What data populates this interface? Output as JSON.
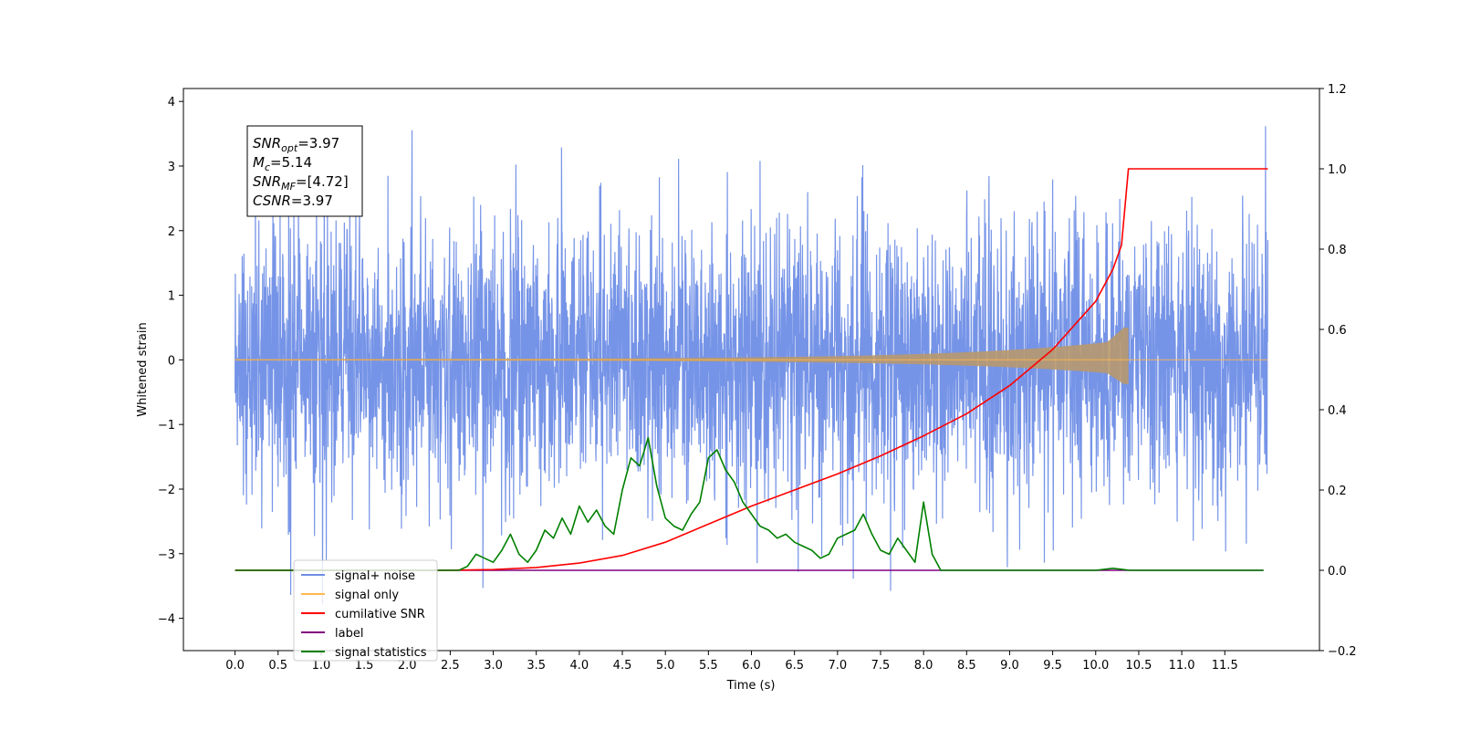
{
  "chart_data": {
    "type": "line",
    "xlabel": "Time (s)",
    "ylabel": "Whitened strain",
    "xlim": [
      -0.6,
      12.6
    ],
    "ylim": [
      -4.5,
      4.2
    ],
    "y2lim": [
      -0.2,
      1.2
    ],
    "x_ticks": [
      "0.0",
      "0.5",
      "1.0",
      "1.5",
      "2.0",
      "2.5",
      "3.0",
      "3.5",
      "4.0",
      "4.5",
      "5.0",
      "5.5",
      "6.0",
      "6.5",
      "7.0",
      "7.5",
      "8.0",
      "8.5",
      "9.0",
      "9.5",
      "10.0",
      "10.5",
      "11.0",
      "11.5"
    ],
    "y_ticks": [
      "4",
      "3",
      "2",
      "1",
      "0",
      "−1",
      "−2",
      "−3",
      "−4"
    ],
    "y2_ticks": [
      "1.2",
      "1.0",
      "0.8",
      "0.6",
      "0.4",
      "0.2",
      "0.0",
      "−0.2"
    ],
    "grid": false,
    "legend_position": "lower-left",
    "annotation": {
      "lines": [
        {
          "sym": "SNR",
          "sub": "opt",
          "value": "=3.97"
        },
        {
          "sym": "M",
          "sub": "c",
          "value": "=5.14"
        },
        {
          "sym": "SNR",
          "sub": "MF",
          "value": "=[4.72]"
        },
        {
          "sym": "CSNR",
          "sub": "",
          "value": "=3.97"
        }
      ]
    },
    "series": [
      {
        "name": "signal+ noise",
        "color": "#6f8ee6",
        "axis": "left",
        "kind": "noise",
        "x_range": [
          0.0,
          12.0
        ],
        "amplitude_range": [
          -3.95,
          3.85
        ]
      },
      {
        "name": "signal only",
        "color": "#ffb84d",
        "axis": "left",
        "kind": "chirp",
        "merger_time": 10.38,
        "peak_amplitude": 0.5
      },
      {
        "name": "cumilative SNR",
        "color": "#ff0000",
        "axis": "right",
        "x": [
          0.0,
          2.5,
          3.0,
          3.5,
          4.0,
          4.5,
          5.0,
          5.5,
          6.0,
          6.5,
          7.0,
          7.5,
          8.0,
          8.5,
          9.0,
          9.5,
          10.0,
          10.2,
          10.3,
          10.38,
          10.5,
          11.0,
          11.5,
          12.0
        ],
        "values": [
          0.0,
          0.0,
          0.002,
          0.007,
          0.018,
          0.037,
          0.07,
          0.115,
          0.16,
          0.2,
          0.24,
          0.285,
          0.335,
          0.39,
          0.46,
          0.55,
          0.67,
          0.75,
          0.81,
          1.0,
          1.0,
          1.0,
          1.0,
          1.0
        ]
      },
      {
        "name": "label",
        "color": "#800080",
        "axis": "right",
        "x": [
          0.0,
          11.95
        ],
        "values": [
          0.0,
          0.0
        ]
      },
      {
        "name": "signal statistics",
        "color": "#008000",
        "axis": "right",
        "x": [
          0.0,
          2.6,
          2.7,
          2.8,
          2.9,
          3.0,
          3.1,
          3.2,
          3.3,
          3.4,
          3.5,
          3.6,
          3.7,
          3.8,
          3.9,
          4.0,
          4.1,
          4.2,
          4.3,
          4.4,
          4.5,
          4.6,
          4.7,
          4.8,
          4.9,
          5.0,
          5.1,
          5.2,
          5.3,
          5.4,
          5.5,
          5.6,
          5.7,
          5.8,
          5.9,
          6.0,
          6.1,
          6.2,
          6.3,
          6.4,
          6.5,
          6.6,
          6.7,
          6.8,
          6.9,
          7.0,
          7.1,
          7.2,
          7.3,
          7.4,
          7.5,
          7.6,
          7.7,
          7.8,
          7.9,
          8.0,
          8.1,
          8.2,
          8.3,
          8.5,
          9.0,
          10.0,
          10.2,
          10.4,
          11.95
        ],
        "values": [
          0.0,
          0.0,
          0.01,
          0.04,
          0.03,
          0.02,
          0.05,
          0.09,
          0.04,
          0.02,
          0.05,
          0.1,
          0.08,
          0.13,
          0.09,
          0.16,
          0.12,
          0.15,
          0.11,
          0.09,
          0.2,
          0.28,
          0.26,
          0.33,
          0.21,
          0.13,
          0.11,
          0.1,
          0.14,
          0.17,
          0.28,
          0.3,
          0.25,
          0.22,
          0.17,
          0.14,
          0.11,
          0.1,
          0.08,
          0.09,
          0.07,
          0.06,
          0.05,
          0.03,
          0.04,
          0.08,
          0.09,
          0.1,
          0.14,
          0.09,
          0.05,
          0.04,
          0.08,
          0.05,
          0.02,
          0.17,
          0.04,
          0.0,
          0.0,
          0.0,
          0.0,
          0.0,
          0.005,
          0.0,
          0.0
        ]
      }
    ]
  }
}
